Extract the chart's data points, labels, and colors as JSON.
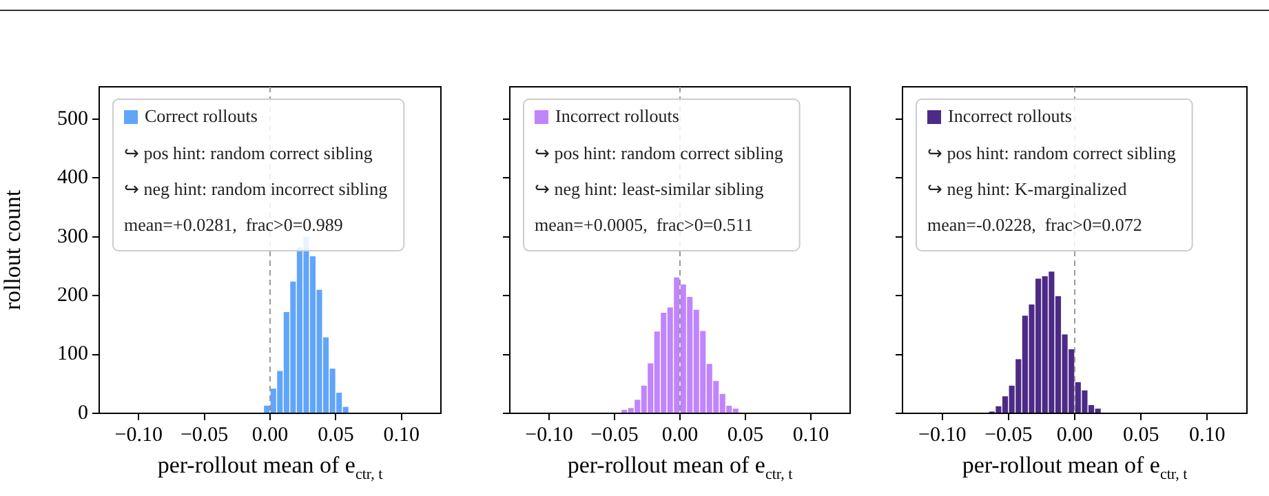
{
  "chart_data": [
    {
      "type": "histogram",
      "xlabel": "per-rollout mean of e$_{ctr, t}$",
      "ylabel": "rollout count",
      "bins": [
        -0.005,
        0,
        0.005,
        0.01,
        0.015,
        0.02,
        0.025,
        0.03,
        0.035,
        0.04,
        0.045,
        0.05,
        0.055,
        0.06
      ],
      "series": [
        {
          "name": "Correct rollouts",
          "color": "#60a5fa",
          "values": [
            13,
            42,
            72,
            172,
            224,
            282,
            300,
            267,
            210,
            129,
            76,
            35,
            11
          ]
        }
      ],
      "xlim": [
        -0.13,
        0.13
      ],
      "xticks": [
        {
          "value": -0.1,
          "label": "−0.10"
        },
        {
          "value": -0.05,
          "label": "−0.05"
        },
        {
          "value": 0,
          "label": "0.00"
        },
        {
          "value": 0.05,
          "label": "0.05"
        },
        {
          "value": 0.1,
          "label": "0.10"
        }
      ],
      "ylim": [
        0,
        555
      ],
      "yticks": [
        0,
        100,
        200,
        300,
        400,
        500
      ],
      "ref_lines": [
        {
          "axis": "x",
          "value": 0,
          "color": "#999999",
          "line_style": "dashed"
        }
      ],
      "annotations": [
        "↪ pos hint: random correct sibling",
        "↪ neg hint: random incorrect sibling",
        "mean=+0.0281,  frac>0=0.989"
      ],
      "legend": "top left",
      "grid": false
    },
    {
      "type": "histogram",
      "xlabel": "per-rollout mean of e$_{ctr, t}$",
      "bins": [
        -0.045,
        -0.04,
        -0.035,
        -0.03,
        -0.025,
        -0.02,
        -0.015,
        -0.01,
        -0.005,
        0,
        0.005,
        0.01,
        0.015,
        0.02,
        0.025,
        0.03,
        0.035,
        0.04,
        0.045
      ],
      "series": [
        {
          "name": "Incorrect rollouts",
          "color": "#c084fc",
          "values": [
            6,
            9,
            23,
            47,
            85,
            139,
            171,
            180,
            231,
            219,
            198,
            176,
            140,
            84,
            55,
            33,
            13,
            8
          ]
        }
      ],
      "xlim": [
        -0.13,
        0.13
      ],
      "xticks": [
        {
          "value": -0.1,
          "label": "−0.10"
        },
        {
          "value": -0.05,
          "label": "−0.05"
        },
        {
          "value": 0,
          "label": "0.00"
        },
        {
          "value": 0.05,
          "label": "0.05"
        },
        {
          "value": 0.1,
          "label": "0.10"
        }
      ],
      "ylim": [
        0,
        555
      ],
      "yticks": [
        0,
        100,
        200,
        300,
        400,
        500
      ],
      "tick_labels": "x",
      "ref_lines": [
        {
          "axis": "x",
          "value": 0,
          "color": "#999999",
          "line_style": "dashed"
        }
      ],
      "annotations": [
        "↪ pos hint: random correct sibling",
        "↪ neg hint: least-similar sibling",
        "mean=+0.0005,  frac>0=0.511"
      ],
      "legend": "top left",
      "grid": false
    },
    {
      "type": "histogram",
      "xlabel": "per-rollout mean of e$_{ctr, t}$",
      "bins": [
        -0.065,
        -0.06,
        -0.055,
        -0.05,
        -0.045,
        -0.04,
        -0.035,
        -0.03,
        -0.025,
        -0.02,
        -0.015,
        -0.01,
        -0.005,
        0,
        0.005,
        0.01,
        0.015,
        0.02
      ],
      "series": [
        {
          "name": "Incorrect rollouts",
          "color": "#4c2a85",
          "values": [
            3,
            12,
            29,
            47,
            92,
            166,
            185,
            229,
            233,
            241,
            199,
            134,
            109,
            53,
            39,
            14,
            8
          ]
        }
      ],
      "xlim": [
        -0.13,
        0.13
      ],
      "xticks": [
        {
          "value": -0.1,
          "label": "−0.10"
        },
        {
          "value": -0.05,
          "label": "−0.05"
        },
        {
          "value": 0,
          "label": "0.00"
        },
        {
          "value": 0.05,
          "label": "0.05"
        },
        {
          "value": 0.1,
          "label": "0.10"
        }
      ],
      "ylim": [
        0,
        555
      ],
      "yticks": [
        0,
        100,
        200,
        300,
        400,
        500
      ],
      "tick_labels": "x",
      "ref_lines": [
        {
          "axis": "x",
          "value": 0,
          "color": "#999999",
          "line_style": "dashed"
        }
      ],
      "annotations": [
        "↪ pos hint: random correct sibling",
        "↪ neg hint: K-marginalized",
        "mean=-0.0228,  frac>0=0.072"
      ],
      "legend": "top left",
      "grid": false
    }
  ]
}
